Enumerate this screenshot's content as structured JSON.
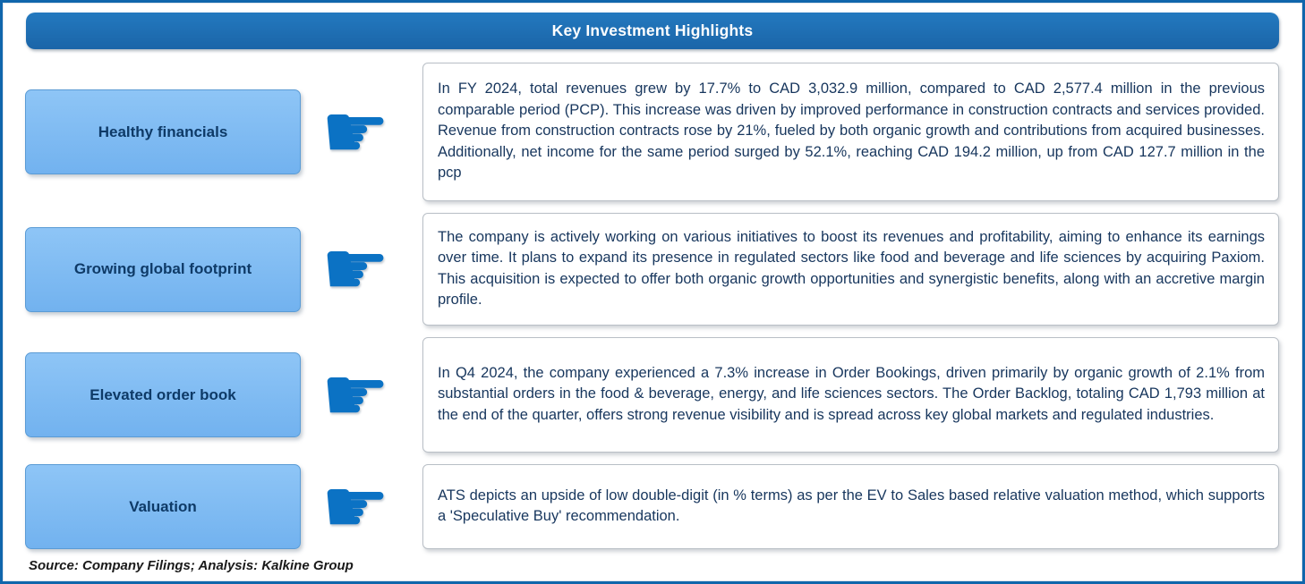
{
  "title": "Key Investment Highlights",
  "rows": [
    {
      "label": "Healthy financials",
      "text": "In FY 2024, total revenues grew by 17.7% to CAD 3,032.9 million, compared to CAD 2,577.4 million in the previous comparable period (PCP). This increase was driven by improved performance in construction contracts and services provided. Revenue from construction contracts rose by 21%, fueled by both organic growth and contributions from acquired businesses. Additionally, net income for the same period surged by 52.1%, reaching CAD 194.2 million, up from CAD 127.7 million in the pcp"
    },
    {
      "label": "Growing global footprint",
      "text": "The company is actively working on various initiatives to boost its revenues and profitability, aiming to enhance its earnings over time. It plans to expand its presence in regulated sectors like food and beverage and life sciences by acquiring Paxiom. This acquisition is expected to offer both organic growth opportunities and synergistic benefits, along with an accretive margin profile."
    },
    {
      "label": "Elevated order book",
      "text": "In Q4 2024, the company experienced a 7.3% increase in Order Bookings, driven primarily by organic growth of 2.1% from substantial orders in the food & beverage, energy, and life sciences sectors. The Order Backlog, totaling CAD 1,793 million at the end of the quarter, offers strong revenue visibility and is spread across key global markets and regulated industries."
    },
    {
      "label": "Valuation",
      "text": "ATS depicts an upside of low double-digit (in % terms) as per the EV to Sales based relative valuation method, which supports a 'Speculative Buy' recommendation."
    }
  ],
  "icons": {
    "pointer_char": "☛"
  },
  "footer": "Source: Company Filings; Analysis: Kalkine Group",
  "colors": {
    "border_blue": "#1066ac",
    "header_blue_1": "#2379bf",
    "header_blue_2": "#1b65a8",
    "label_fill_1": "#8ec5f6",
    "label_fill_2": "#72b2ef",
    "label_text": "#0e3a67",
    "body_text": "#17365d",
    "hand_blue": "#0b72c4"
  }
}
